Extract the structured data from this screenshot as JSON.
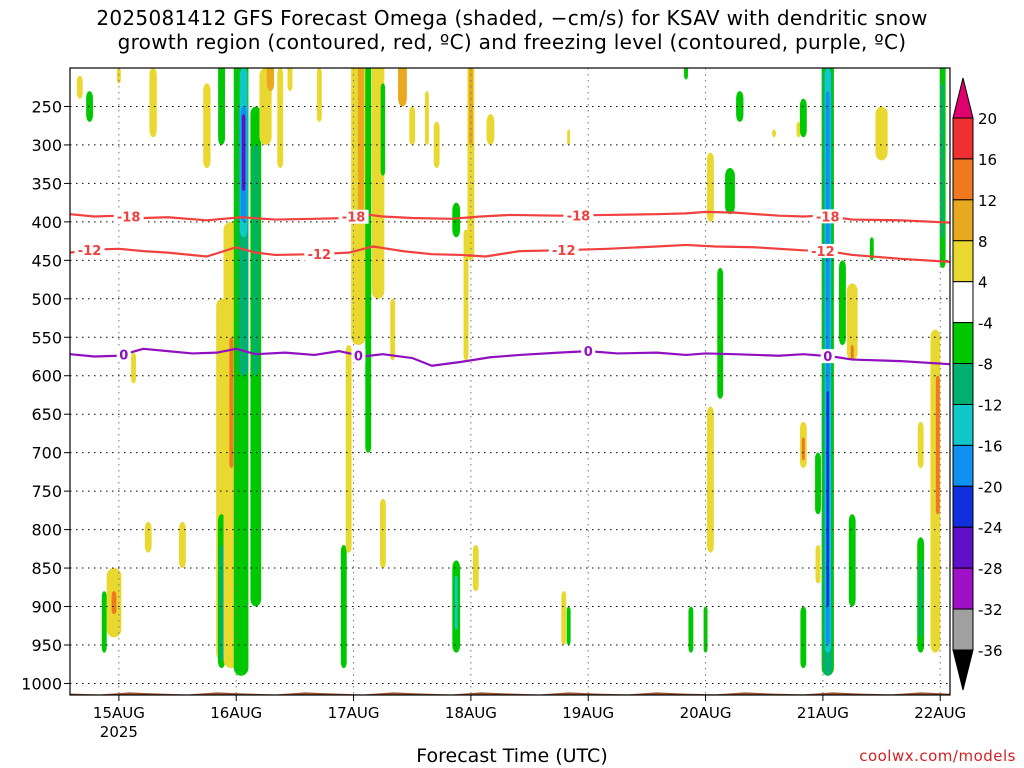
{
  "title_line1": "2025081412 GFS Forecast Omega (shaded, −cm/s) for KSAV with dendritic snow",
  "title_line2": "growth region (contoured, red, ºC) and freezing level (contoured, purple, ºC)",
  "credit": "coolwx.com/models",
  "chart_data": {
    "type": "contour",
    "xlabel": "Forecast Time (UTC)",
    "ylabel": "",
    "x_ticks": [
      {
        "label": "15AUG",
        "sub": "2025",
        "hour": 10
      },
      {
        "label": "16AUG",
        "sub": "",
        "hour": 34
      },
      {
        "label": "17AUG",
        "sub": "",
        "hour": 58
      },
      {
        "label": "18AUG",
        "sub": "",
        "hour": 82
      },
      {
        "label": "19AUG",
        "sub": "",
        "hour": 106
      },
      {
        "label": "20AUG",
        "sub": "",
        "hour": 130
      },
      {
        "label": "21AUG",
        "sub": "",
        "hour": 154
      },
      {
        "label": "22AUG",
        "sub": "",
        "hour": 178
      }
    ],
    "x_range_hours": [
      0,
      180
    ],
    "y_ticks": [
      250,
      300,
      350,
      400,
      450,
      500,
      550,
      600,
      650,
      700,
      750,
      800,
      850,
      900,
      950,
      1000
    ],
    "y_range_hpa": [
      200,
      1015
    ],
    "colorbar": {
      "ticks": [
        "20",
        "16",
        "12",
        "8",
        "4",
        "-4",
        "-8",
        "-12",
        "-16",
        "-20",
        "-24",
        "-28",
        "-32",
        "-36"
      ],
      "colors": [
        "#e0006e",
        "#f03030",
        "#f07820",
        "#e8a820",
        "#e8d830",
        "#ffffff",
        "#00c800",
        "#00b070",
        "#10c8c8",
        "#1090f0",
        "#1030e0",
        "#6010c8",
        "#a010c8",
        "#a0a0a0",
        "#000000"
      ]
    },
    "shading_colors": {
      "yellow": "#e8d830",
      "gold": "#e8a820",
      "orange": "#f07820",
      "green": "#00c800",
      "teal": "#00b070",
      "cyan": "#10c8c8",
      "lightblue": "#1090f0",
      "blue": "#1030e0",
      "purple": "#6010c8"
    },
    "contours": [
      {
        "name": "-18",
        "color": "#f04040",
        "kind": "dendritic",
        "points": [
          [
            0,
            390
          ],
          [
            5,
            393
          ],
          [
            10,
            392
          ],
          [
            15,
            395
          ],
          [
            20,
            394
          ],
          [
            28,
            398
          ],
          [
            35,
            394
          ],
          [
            42,
            397
          ],
          [
            50,
            396
          ],
          [
            57,
            395
          ],
          [
            60,
            390
          ],
          [
            64,
            393
          ],
          [
            70,
            395
          ],
          [
            78,
            396
          ],
          [
            84,
            393
          ],
          [
            90,
            391
          ],
          [
            100,
            392
          ],
          [
            110,
            391
          ],
          [
            120,
            390
          ],
          [
            126,
            389
          ],
          [
            130,
            387
          ],
          [
            136,
            388
          ],
          [
            145,
            392
          ],
          [
            150,
            393
          ],
          [
            154,
            392
          ],
          [
            160,
            397
          ],
          [
            170,
            398
          ],
          [
            180,
            401
          ]
        ],
        "labels_at": [
          12,
          58,
          104,
          155
        ]
      },
      {
        "name": "-12",
        "color": "#f04040",
        "kind": "dendritic",
        "points": [
          [
            0,
            440
          ],
          [
            5,
            436
          ],
          [
            10,
            435
          ],
          [
            15,
            438
          ],
          [
            20,
            440
          ],
          [
            28,
            445
          ],
          [
            34,
            433
          ],
          [
            38,
            440
          ],
          [
            42,
            443
          ],
          [
            50,
            442
          ],
          [
            57,
            440
          ],
          [
            62,
            432
          ],
          [
            68,
            438
          ],
          [
            74,
            442
          ],
          [
            80,
            443
          ],
          [
            85,
            445
          ],
          [
            92,
            438
          ],
          [
            100,
            437
          ],
          [
            110,
            435
          ],
          [
            120,
            432
          ],
          [
            126,
            430
          ],
          [
            132,
            432
          ],
          [
            140,
            433
          ],
          [
            150,
            437
          ],
          [
            155,
            438
          ],
          [
            160,
            443
          ],
          [
            170,
            448
          ],
          [
            180,
            452
          ]
        ],
        "labels_at": [
          4,
          51,
          101,
          154
        ]
      },
      {
        "name": "0",
        "color": "#9010c0",
        "kind": "freezing",
        "points": [
          [
            0,
            572
          ],
          [
            5,
            575
          ],
          [
            10,
            574
          ],
          [
            15,
            565
          ],
          [
            20,
            568
          ],
          [
            25,
            571
          ],
          [
            30,
            570
          ],
          [
            34,
            565
          ],
          [
            38,
            572
          ],
          [
            44,
            570
          ],
          [
            50,
            573
          ],
          [
            55,
            568
          ],
          [
            60,
            575
          ],
          [
            64,
            572
          ],
          [
            70,
            577
          ],
          [
            74,
            587
          ],
          [
            80,
            582
          ],
          [
            86,
            576
          ],
          [
            92,
            573
          ],
          [
            100,
            570
          ],
          [
            106,
            568
          ],
          [
            112,
            571
          ],
          [
            120,
            570
          ],
          [
            126,
            573
          ],
          [
            130,
            571
          ],
          [
            136,
            572
          ],
          [
            145,
            574
          ],
          [
            150,
            572
          ],
          [
            156,
            575
          ],
          [
            160,
            579
          ],
          [
            170,
            581
          ],
          [
            180,
            585
          ]
        ],
        "labels_at": [
          11,
          59,
          106,
          155
        ]
      }
    ],
    "terrain": {
      "color": "#a0522d",
      "top_hpa": 1013
    },
    "shaded_regions": [
      {
        "c": "yellow",
        "x": 2,
        "y": [
          210,
          240
        ],
        "w": 1.2
      },
      {
        "c": "green",
        "x": 4,
        "y": [
          230,
          270
        ],
        "w": 1.4
      },
      {
        "c": "yellow",
        "x": 10,
        "y": [
          200,
          220
        ],
        "w": 0.8
      },
      {
        "c": "yellow",
        "x": 17,
        "y": [
          200,
          290
        ],
        "w": 1.5
      },
      {
        "c": "yellow",
        "x": 13,
        "y": [
          570,
          610
        ],
        "w": 1
      },
      {
        "c": "yellow",
        "x": 9,
        "y": [
          850,
          940
        ],
        "w": 3
      },
      {
        "c": "orange",
        "x": 9,
        "y": [
          880,
          910
        ],
        "w": 1
      },
      {
        "c": "green",
        "x": 7,
        "y": [
          880,
          960
        ],
        "w": 1
      },
      {
        "c": "yellow",
        "x": 16,
        "y": [
          790,
          830
        ],
        "w": 1.4
      },
      {
        "c": "yellow",
        "x": 23,
        "y": [
          790,
          850
        ],
        "w": 1.4
      },
      {
        "c": "yellow",
        "x": 28,
        "y": [
          220,
          330
        ],
        "w": 1.5
      },
      {
        "c": "green",
        "x": 31,
        "y": [
          190,
          300
        ],
        "w": 1.4
      },
      {
        "c": "yellow",
        "x": 31,
        "y": [
          500,
          970
        ],
        "w": 2.2
      },
      {
        "c": "green",
        "x": 31,
        "y": [
          780,
          980
        ],
        "w": 1.5
      },
      {
        "c": "teal",
        "x": 31,
        "y": [
          820,
          970
        ],
        "w": 0.8
      },
      {
        "c": "yellow",
        "x": 33,
        "y": [
          400,
          980
        ],
        "w": 3.2
      },
      {
        "c": "orange",
        "x": 33,
        "y": [
          550,
          720
        ],
        "w": 0.8
      },
      {
        "c": "green",
        "x": 35,
        "y": [
          190,
          990
        ],
        "w": 3
      },
      {
        "c": "teal",
        "x": 35.5,
        "y": [
          240,
          600
        ],
        "w": 2
      },
      {
        "c": "cyan",
        "x": 35.5,
        "y": [
          200,
          420
        ],
        "w": 1.6
      },
      {
        "c": "lightblue",
        "x": 35.5,
        "y": [
          250,
          400
        ],
        "w": 1.2
      },
      {
        "c": "purple",
        "x": 35.5,
        "y": [
          260,
          360
        ],
        "w": 0.7
      },
      {
        "c": "green",
        "x": 38,
        "y": [
          250,
          900
        ],
        "w": 2.2
      },
      {
        "c": "teal",
        "x": 38,
        "y": [
          300,
          600
        ],
        "w": 1.2
      },
      {
        "c": "yellow",
        "x": 40,
        "y": [
          200,
          300
        ],
        "w": 2.5
      },
      {
        "c": "gold",
        "x": 41,
        "y": [
          190,
          230
        ],
        "w": 1.5
      },
      {
        "c": "yellow",
        "x": 43,
        "y": [
          200,
          330
        ],
        "w": 1.2
      },
      {
        "c": "yellow",
        "x": 45,
        "y": [
          190,
          230
        ],
        "w": 1
      },
      {
        "c": "yellow",
        "x": 51,
        "y": [
          200,
          270
        ],
        "w": 1
      },
      {
        "c": "green",
        "x": 56,
        "y": [
          820,
          980
        ],
        "w": 1.2
      },
      {
        "c": "yellow",
        "x": 57,
        "y": [
          560,
          830
        ],
        "w": 1.2
      },
      {
        "c": "yellow",
        "x": 59,
        "y": [
          190,
          560
        ],
        "w": 3
      },
      {
        "c": "gold",
        "x": 59.5,
        "y": [
          190,
          400
        ],
        "w": 1.2
      },
      {
        "c": "green",
        "x": 61,
        "y": [
          190,
          700
        ],
        "w": 1.2
      },
      {
        "c": "yellow",
        "x": 63,
        "y": [
          190,
          500
        ],
        "w": 2.6
      },
      {
        "c": "green",
        "x": 64,
        "y": [
          220,
          340
        ],
        "w": 0.9
      },
      {
        "c": "yellow",
        "x": 64,
        "y": [
          760,
          850
        ],
        "w": 1.2
      },
      {
        "c": "yellow",
        "x": 66,
        "y": [
          500,
          580
        ],
        "w": 1
      },
      {
        "c": "gold",
        "x": 68,
        "y": [
          190,
          250
        ],
        "w": 1.8
      },
      {
        "c": "yellow",
        "x": 70,
        "y": [
          250,
          300
        ],
        "w": 1.2
      },
      {
        "c": "yellow",
        "x": 73,
        "y": [
          230,
          300
        ],
        "w": 0.8
      },
      {
        "c": "yellow",
        "x": 75,
        "y": [
          270,
          330
        ],
        "w": 1.2
      },
      {
        "c": "green",
        "x": 79,
        "y": [
          375,
          420
        ],
        "w": 1.6
      },
      {
        "c": "green",
        "x": 79,
        "y": [
          840,
          960
        ],
        "w": 1.6
      },
      {
        "c": "cyan",
        "x": 79,
        "y": [
          860,
          930
        ],
        "w": 0.6
      },
      {
        "c": "yellow",
        "x": 81,
        "y": [
          410,
          580
        ],
        "w": 1
      },
      {
        "c": "yellow",
        "x": 82,
        "y": [
          190,
          450
        ],
        "w": 1.4
      },
      {
        "c": "gold",
        "x": 82,
        "y": [
          190,
          300
        ],
        "w": 0.8
      },
      {
        "c": "yellow",
        "x": 83,
        "y": [
          820,
          880
        ],
        "w": 1.2
      },
      {
        "c": "yellow",
        "x": 86,
        "y": [
          260,
          300
        ],
        "w": 1.6
      },
      {
        "c": "yellow",
        "x": 101,
        "y": [
          880,
          950
        ],
        "w": 1
      },
      {
        "c": "green",
        "x": 102,
        "y": [
          900,
          950
        ],
        "w": 0.8
      },
      {
        "c": "yellow",
        "x": 102,
        "y": [
          280,
          300
        ],
        "w": 0.6
      },
      {
        "c": "green",
        "x": 126,
        "y": [
          190,
          215
        ],
        "w": 0.8
      },
      {
        "c": "green",
        "x": 127,
        "y": [
          900,
          960
        ],
        "w": 1
      },
      {
        "c": "green",
        "x": 130,
        "y": [
          900,
          960
        ],
        "w": 0.8
      },
      {
        "c": "yellow",
        "x": 131,
        "y": [
          310,
          400
        ],
        "w": 1.4
      },
      {
        "c": "yellow",
        "x": 131,
        "y": [
          640,
          830
        ],
        "w": 1.4
      },
      {
        "c": "green",
        "x": 133,
        "y": [
          460,
          630
        ],
        "w": 1.2
      },
      {
        "c": "green",
        "x": 135,
        "y": [
          330,
          390
        ],
        "w": 2
      },
      {
        "c": "green",
        "x": 137,
        "y": [
          230,
          270
        ],
        "w": 1.5
      },
      {
        "c": "yellow",
        "x": 144,
        "y": [
          280,
          290
        ],
        "w": 0.8
      },
      {
        "c": "yellow",
        "x": 149,
        "y": [
          270,
          290
        ],
        "w": 0.8
      },
      {
        "c": "green",
        "x": 150,
        "y": [
          240,
          290
        ],
        "w": 1.4
      },
      {
        "c": "yellow",
        "x": 150,
        "y": [
          660,
          720
        ],
        "w": 1.4
      },
      {
        "c": "orange",
        "x": 150,
        "y": [
          680,
          710
        ],
        "w": 0.6
      },
      {
        "c": "green",
        "x": 150,
        "y": [
          900,
          980
        ],
        "w": 1.2
      },
      {
        "c": "green",
        "x": 153,
        "y": [
          700,
          780
        ],
        "w": 1.2
      },
      {
        "c": "yellow",
        "x": 153,
        "y": [
          820,
          870
        ],
        "w": 1
      },
      {
        "c": "green",
        "x": 155,
        "y": [
          190,
          990
        ],
        "w": 2.5
      },
      {
        "c": "teal",
        "x": 155,
        "y": [
          200,
          990
        ],
        "w": 1.8
      },
      {
        "c": "cyan",
        "x": 155,
        "y": [
          200,
          960
        ],
        "w": 1.3
      },
      {
        "c": "lightblue",
        "x": 155,
        "y": [
          230,
          950
        ],
        "w": 0.8
      },
      {
        "c": "blue",
        "x": 155,
        "y": [
          620,
          900
        ],
        "w": 0.5
      },
      {
        "c": "green",
        "x": 158,
        "y": [
          450,
          560
        ],
        "w": 1.4
      },
      {
        "c": "yellow",
        "x": 160,
        "y": [
          480,
          580
        ],
        "w": 2.2
      },
      {
        "c": "orange",
        "x": 160,
        "y": [
          560,
          580
        ],
        "w": 0.6
      },
      {
        "c": "green",
        "x": 160,
        "y": [
          780,
          900
        ],
        "w": 1.4
      },
      {
        "c": "yellow",
        "x": 166,
        "y": [
          250,
          320
        ],
        "w": 2.5
      },
      {
        "c": "green",
        "x": 164,
        "y": [
          420,
          450
        ],
        "w": 0.8
      },
      {
        "c": "yellow",
        "x": 174,
        "y": [
          660,
          720
        ],
        "w": 1.2
      },
      {
        "c": "green",
        "x": 174,
        "y": [
          810,
          960
        ],
        "w": 1.4
      },
      {
        "c": "teal",
        "x": 174,
        "y": [
          840,
          940
        ],
        "w": 0.6
      },
      {
        "c": "yellow",
        "x": 177,
        "y": [
          540,
          960
        ],
        "w": 2
      },
      {
        "c": "orange",
        "x": 177.5,
        "y": [
          600,
          780
        ],
        "w": 0.8
      },
      {
        "c": "green",
        "x": 178.5,
        "y": [
          190,
          460
        ],
        "w": 1.2
      },
      {
        "c": "teal",
        "x": 178.5,
        "y": [
          220,
          420
        ],
        "w": 0.6
      }
    ]
  }
}
